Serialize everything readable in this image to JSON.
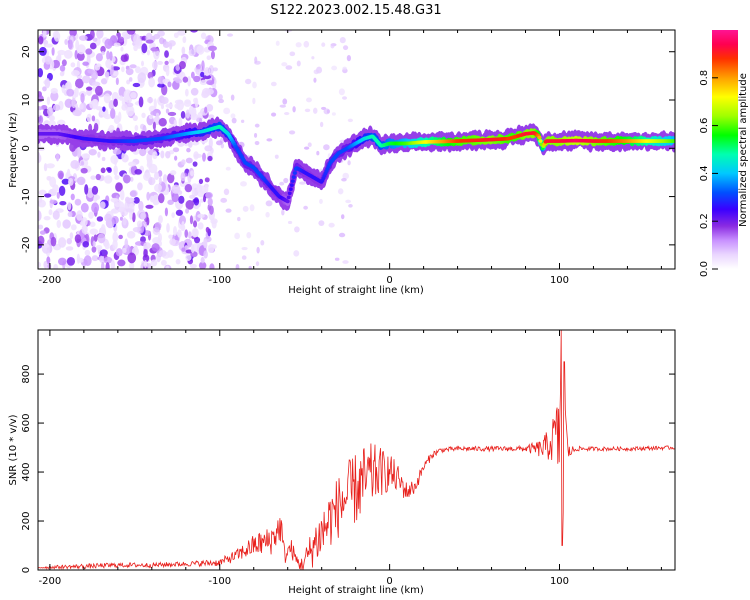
{
  "figure_title": "S122.2023.002.15.48.G31",
  "chart_data": [
    {
      "type": "heatmap",
      "xlabel": "Height of straight line (km)",
      "ylabel": "Frequency (Hz)",
      "xlim": [
        -207,
        168
      ],
      "ylim": [
        -25,
        24.5
      ],
      "xticks": [
        -200,
        -100,
        0,
        100
      ],
      "yticks": [
        -20,
        -10,
        0,
        10,
        20
      ],
      "colorbar": {
        "label": "Normalized spectral amplitude",
        "range": [
          0,
          1
        ],
        "ticks": [
          "0.0",
          "0.2",
          "0.4",
          "0.6",
          "0.8"
        ],
        "tick_values": [
          0,
          0.2,
          0.4,
          0.6,
          0.8
        ],
        "colormap": [
          "#ffffff",
          "#ead6ff",
          "#c890ff",
          "#8a2be2",
          "#3a00ff",
          "#0050ff",
          "#00c8ff",
          "#00ffb0",
          "#00ff00",
          "#a0ff00",
          "#ffff00",
          "#ffa000",
          "#ff3000",
          "#ff0050",
          "#ff1493"
        ]
      },
      "ridge": {
        "x": [
          -207,
          -195,
          -180,
          -165,
          -150,
          -135,
          -120,
          -110,
          -100,
          -95,
          -90,
          -85,
          -80,
          -75,
          -70,
          -65,
          -60,
          -55,
          -50,
          -45,
          -40,
          -35,
          -30,
          -25,
          -20,
          -15,
          -10,
          -5,
          0,
          10,
          20,
          40,
          60,
          70,
          75,
          80,
          85,
          88,
          90,
          92,
          95,
          100,
          110,
          120,
          140,
          168
        ],
        "freq": [
          3,
          3,
          2,
          1.5,
          1.5,
          2,
          3,
          3.5,
          4.5,
          3,
          0,
          -3,
          -4,
          -6,
          -8,
          -10,
          -11,
          -4,
          -5,
          -6,
          -7,
          -3,
          -1,
          0,
          1,
          2,
          2.5,
          0.5,
          1,
          1,
          1.3,
          1.5,
          1.8,
          2,
          2.5,
          3,
          3.2,
          2.5,
          0,
          1.5,
          1.5,
          1.5,
          1.6,
          1.5,
          1.5,
          1.5
        ],
        "amplitude": [
          0.25,
          0.25,
          0.3,
          0.3,
          0.35,
          0.35,
          0.4,
          0.45,
          0.5,
          0.45,
          0.35,
          0.35,
          0.35,
          0.35,
          0.3,
          0.3,
          0.25,
          0.35,
          0.3,
          0.3,
          0.3,
          0.35,
          0.35,
          0.35,
          0.4,
          0.45,
          0.5,
          0.5,
          0.55,
          0.6,
          0.7,
          0.85,
          0.9,
          0.85,
          0.85,
          0.9,
          0.9,
          0.8,
          0.55,
          0.9,
          0.9,
          0.9,
          0.95,
          0.9,
          0.8,
          0.6
        ]
      }
    },
    {
      "type": "line",
      "xlabel": "Height of straight line (km)",
      "ylabel": "SNR (10 * v/v)",
      "xlim": [
        -207,
        168
      ],
      "ylim": [
        0,
        980
      ],
      "xticks": [
        -200,
        -100,
        0,
        100
      ],
      "yticks": [
        0,
        200,
        400,
        600,
        800
      ],
      "series": [
        {
          "color": "#e8201c",
          "x": [
            -207,
            -180,
            -160,
            -140,
            -120,
            -100,
            -90,
            -80,
            -70,
            -64,
            -62,
            -58,
            -55,
            -52,
            -48,
            -45,
            -40,
            -35,
            -30,
            -25,
            -20,
            -15,
            -10,
            -5,
            0,
            5,
            10,
            15,
            20,
            25,
            30,
            40,
            50,
            60,
            70,
            80,
            90,
            95,
            98,
            100,
            101,
            102,
            103,
            105,
            110,
            120,
            140,
            168
          ],
          "y": [
            10,
            15,
            20,
            20,
            25,
            30,
            60,
            100,
            120,
            180,
            60,
            90,
            40,
            20,
            60,
            100,
            150,
            210,
            260,
            300,
            330,
            360,
            390,
            400,
            400,
            370,
            320,
            340,
            420,
            470,
            490,
            495,
            495,
            495,
            495,
            495,
            495,
            520,
            560,
            500,
            980,
            120,
            700,
            480,
            495,
            495,
            495,
            500
          ],
          "noise": [
            5,
            10,
            10,
            10,
            10,
            15,
            25,
            45,
            60,
            70,
            40,
            40,
            30,
            30,
            60,
            90,
            110,
            120,
            130,
            140,
            150,
            150,
            130,
            100,
            80,
            60,
            40,
            30,
            20,
            15,
            10,
            10,
            10,
            10,
            10,
            12,
            40,
            80,
            120,
            200,
            0,
            0,
            0,
            30,
            10,
            8,
            8,
            8
          ]
        }
      ]
    }
  ]
}
